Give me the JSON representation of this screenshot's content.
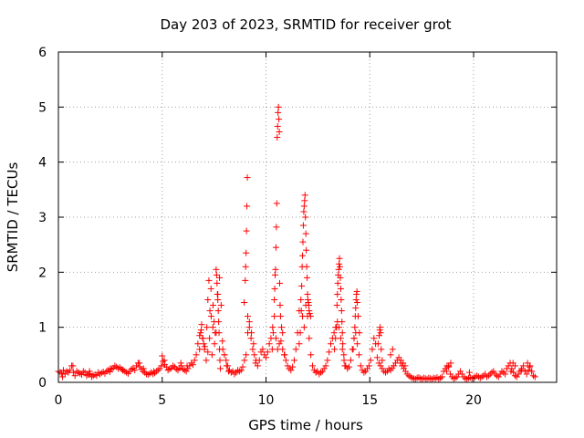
{
  "chart_data": {
    "type": "scatter",
    "title": "Day 203 of 2023, SRMTID for receiver grot",
    "xlabel": "GPS time / hours",
    "ylabel": "SRMTID / TECUs",
    "xlim": [
      0,
      24
    ],
    "ylim": [
      0,
      6
    ],
    "xticks": [
      0,
      5,
      10,
      15,
      20
    ],
    "yticks": [
      0,
      1,
      2,
      3,
      4,
      5,
      6
    ],
    "grid": true,
    "marker": "+",
    "colors": {
      "series": "#ff0000",
      "grid": "#a0a0a0",
      "axis": "#000000"
    },
    "series": [
      {
        "name": "SRMTID",
        "x": [
          0.0,
          0.08,
          0.16,
          0.24,
          0.32,
          0.4,
          0.48,
          0.56,
          0.64,
          0.72,
          0.8,
          0.88,
          0.96,
          1.04,
          1.12,
          1.2,
          1.28,
          1.36,
          1.44,
          1.52,
          1.6,
          1.68,
          1.76,
          1.84,
          1.92,
          2.0,
          2.08,
          2.16,
          2.24,
          2.32,
          2.4,
          2.48,
          2.56,
          2.64,
          2.72,
          2.8,
          2.88,
          2.96,
          3.04,
          3.12,
          3.2,
          3.28,
          3.36,
          3.44,
          3.52,
          3.6,
          3.68,
          3.76,
          3.84,
          3.92,
          4.0,
          4.08,
          4.16,
          4.24,
          4.32,
          4.4,
          4.48,
          4.56,
          4.64,
          4.72,
          4.8,
          4.88,
          4.96,
          5.04,
          5.12,
          5.2,
          5.28,
          5.36,
          5.44,
          5.52,
          5.6,
          5.68,
          5.76,
          5.84,
          5.92,
          6.0,
          6.08,
          6.16,
          6.24,
          6.32,
          6.4,
          6.48,
          6.56,
          6.64,
          6.72,
          6.8,
          6.88,
          6.96,
          7.04,
          7.12,
          7.2,
          7.28,
          7.36,
          7.44,
          7.52,
          7.6,
          7.68,
          7.76,
          7.84,
          7.92,
          8.0,
          8.08,
          8.16,
          8.24,
          8.32,
          8.4,
          8.48,
          8.56,
          8.64,
          8.72,
          8.8,
          8.88,
          8.96,
          9.04,
          9.12,
          9.2,
          9.28,
          9.36,
          9.44,
          9.52,
          9.6,
          9.68,
          9.76,
          9.84,
          9.92,
          10.0,
          10.08,
          10.16,
          10.24,
          10.32,
          10.4,
          10.48,
          10.56,
          10.64,
          10.72,
          10.8,
          10.88,
          10.96,
          11.04,
          11.12,
          11.2,
          11.28,
          11.36,
          11.44,
          11.52,
          11.6,
          11.68,
          11.76,
          11.84,
          11.92,
          12.0,
          12.08,
          12.16,
          12.24,
          12.32,
          12.4,
          12.48,
          12.56,
          12.64,
          12.72,
          12.8,
          12.88,
          12.96,
          13.04,
          13.12,
          13.2,
          13.28,
          13.36,
          13.44,
          13.52,
          13.6,
          13.68,
          13.76,
          13.84,
          13.92,
          14.0,
          14.08,
          14.16,
          14.24,
          14.32,
          14.4,
          14.48,
          14.56,
          14.64,
          14.72,
          14.8,
          14.88,
          14.96,
          15.04,
          15.12,
          15.2,
          15.28,
          15.36,
          15.44,
          15.52,
          15.6,
          15.68,
          15.76,
          15.84,
          15.92,
          16.0,
          16.08,
          16.16,
          16.24,
          16.32,
          16.4,
          16.48,
          16.56,
          16.64,
          16.72,
          16.8,
          16.88,
          16.96,
          17.04,
          17.12,
          17.2,
          17.28,
          17.36,
          17.44,
          17.52,
          17.6,
          17.68,
          17.76,
          17.84,
          17.92,
          18.0,
          18.08,
          18.16,
          18.24,
          18.32,
          18.4,
          18.48,
          18.56,
          18.64,
          18.72,
          18.8,
          18.88,
          18.96,
          19.04,
          19.12,
          19.2,
          19.28,
          19.36,
          19.44,
          19.52,
          19.6,
          19.68,
          19.76,
          19.84,
          19.92,
          20.0,
          20.08,
          20.16,
          20.24,
          20.32,
          20.4,
          20.48,
          20.56,
          20.64,
          20.72,
          20.8,
          20.88,
          20.96,
          21.04,
          21.12,
          21.2,
          21.28,
          21.36,
          21.44,
          21.52,
          21.6,
          21.68,
          21.76,
          21.84,
          21.92,
          22.0,
          22.08,
          22.16,
          22.24,
          22.32,
          22.4,
          22.48,
          22.56,
          22.64,
          22.72,
          22.8,
          22.88,
          22.96,
          0.2,
          0.7,
          1.5,
          2.5,
          3.1,
          3.9,
          4.1,
          4.6,
          5.0,
          5.1,
          5.9,
          6.2,
          6.8,
          6.85,
          6.9,
          6.95,
          7.0,
          7.05,
          7.15,
          7.2,
          7.25,
          7.3,
          7.35,
          7.4,
          7.45,
          7.5,
          7.55,
          7.6,
          7.62,
          7.64,
          7.66,
          7.68,
          7.7,
          7.72,
          7.74,
          7.76,
          7.78,
          7.8,
          7.9,
          8.0,
          8.1,
          8.2,
          8.95,
          9.0,
          9.02,
          9.04,
          9.06,
          9.08,
          9.1,
          9.12,
          9.2,
          9.3,
          9.4,
          9.5,
          10.3,
          10.35,
          10.4,
          10.42,
          10.44,
          10.46,
          10.48,
          10.5,
          10.52,
          10.54,
          10.56,
          10.58,
          10.6,
          10.62,
          10.64,
          10.66,
          10.68,
          10.7,
          10.75,
          10.8,
          10.9,
          11.6,
          11.65,
          11.7,
          11.72,
          11.74,
          11.76,
          11.78,
          11.8,
          11.82,
          11.84,
          11.86,
          11.88,
          11.9,
          11.92,
          11.94,
          11.96,
          11.98,
          12.0,
          12.02,
          12.04,
          12.06,
          12.08,
          12.1,
          12.15,
          13.3,
          13.35,
          13.4,
          13.42,
          13.44,
          13.46,
          13.48,
          13.5,
          13.52,
          13.54,
          13.56,
          13.58,
          13.6,
          13.62,
          13.64,
          13.66,
          13.68,
          13.7,
          13.75,
          13.8,
          14.2,
          14.24,
          14.28,
          14.3,
          14.32,
          14.34,
          14.36,
          14.38,
          14.4,
          14.44,
          14.5,
          15.4,
          15.45,
          15.48,
          15.5,
          15.52,
          15.55,
          15.6,
          16.0,
          16.1,
          16.5,
          16.6,
          16.7,
          18.7,
          18.8,
          18.9,
          19.8,
          21.8,
          21.9,
          22.0,
          22.3,
          22.6,
          22.7,
          22.8
        ],
        "y": [
          0.2,
          0.18,
          0.16,
          0.22,
          0.15,
          0.2,
          0.18,
          0.22,
          0.3,
          0.18,
          0.12,
          0.2,
          0.18,
          0.16,
          0.14,
          0.2,
          0.18,
          0.12,
          0.14,
          0.16,
          0.1,
          0.12,
          0.14,
          0.12,
          0.18,
          0.15,
          0.17,
          0.19,
          0.16,
          0.2,
          0.22,
          0.19,
          0.24,
          0.26,
          0.3,
          0.28,
          0.25,
          0.27,
          0.24,
          0.22,
          0.2,
          0.18,
          0.16,
          0.2,
          0.24,
          0.26,
          0.22,
          0.3,
          0.35,
          0.28,
          0.24,
          0.2,
          0.18,
          0.15,
          0.14,
          0.16,
          0.18,
          0.15,
          0.17,
          0.2,
          0.22,
          0.25,
          0.3,
          0.38,
          0.32,
          0.28,
          0.22,
          0.24,
          0.26,
          0.3,
          0.28,
          0.24,
          0.22,
          0.26,
          0.3,
          0.24,
          0.22,
          0.2,
          0.25,
          0.3,
          0.35,
          0.32,
          0.4,
          0.5,
          0.7,
          0.85,
          0.95,
          0.8,
          0.6,
          0.4,
          0.55,
          0.8,
          1.2,
          1.0,
          0.7,
          0.9,
          1.6,
          1.9,
          1.4,
          0.6,
          0.5,
          0.4,
          0.3,
          0.22,
          0.18,
          0.2,
          0.15,
          0.18,
          0.22,
          0.2,
          0.22,
          0.28,
          0.4,
          0.5,
          0.9,
          1.1,
          0.8,
          0.6,
          0.5,
          0.4,
          0.3,
          0.4,
          0.55,
          0.6,
          0.5,
          0.45,
          0.55,
          0.7,
          0.8,
          1.0,
          1.2,
          0.8,
          0.6,
          0.7,
          0.75,
          0.6,
          0.5,
          0.4,
          0.3,
          0.25,
          0.22,
          0.28,
          0.4,
          0.6,
          0.9,
          1.3,
          1.5,
          1.2,
          1.0,
          1.4,
          1.2,
          0.8,
          0.5,
          0.3,
          0.22,
          0.18,
          0.2,
          0.15,
          0.18,
          0.2,
          0.25,
          0.3,
          0.4,
          0.55,
          0.7,
          0.8,
          0.9,
          1.0,
          1.1,
          1.0,
          0.8,
          0.6,
          0.4,
          0.3,
          0.25,
          0.28,
          0.4,
          0.6,
          0.8,
          0.9,
          0.7,
          0.5,
          0.3,
          0.22,
          0.18,
          0.2,
          0.25,
          0.3,
          0.4,
          0.6,
          0.8,
          0.7,
          0.45,
          0.35,
          0.3,
          0.25,
          0.2,
          0.18,
          0.2,
          0.25,
          0.22,
          0.26,
          0.3,
          0.35,
          0.4,
          0.45,
          0.35,
          0.3,
          0.25,
          0.2,
          0.15,
          0.12,
          0.1,
          0.08,
          0.07,
          0.06,
          0.08,
          0.09,
          0.07,
          0.06,
          0.08,
          0.07,
          0.06,
          0.08,
          0.07,
          0.06,
          0.08,
          0.07,
          0.09,
          0.06,
          0.08,
          0.1,
          0.2,
          0.25,
          0.3,
          0.28,
          0.15,
          0.1,
          0.07,
          0.08,
          0.1,
          0.15,
          0.2,
          0.15,
          0.1,
          0.07,
          0.06,
          0.08,
          0.09,
          0.07,
          0.08,
          0.1,
          0.12,
          0.1,
          0.08,
          0.1,
          0.12,
          0.15,
          0.1,
          0.12,
          0.15,
          0.18,
          0.2,
          0.15,
          0.12,
          0.1,
          0.15,
          0.2,
          0.18,
          0.15,
          0.25,
          0.3,
          0.35,
          0.25,
          0.18,
          0.12,
          0.1,
          0.15,
          0.2,
          0.25,
          0.3,
          0.2,
          0.15,
          0.22,
          0.3,
          0.2,
          0.12,
          0.1,
          0.1,
          0.3,
          0.2,
          0.25,
          0.22,
          0.35,
          0.25,
          0.2,
          0.48,
          0.4,
          0.35,
          0.3,
          0.6,
          0.9,
          1.05,
          0.8,
          0.7,
          0.65,
          1.0,
          1.5,
          1.85,
          1.3,
          1.7,
          0.5,
          1.4,
          1.1,
          0.9,
          2.05,
          1.95,
          1.8,
          1.6,
          1.5,
          1.3,
          1.1,
          0.9,
          0.6,
          0.4,
          0.25,
          0.75,
          0.5,
          0.3,
          0.2,
          1.45,
          1.85,
          2.1,
          2.35,
          2.75,
          3.2,
          3.72,
          1.2,
          1.0,
          0.9,
          0.7,
          0.35,
          0.6,
          0.9,
          1.5,
          1.7,
          1.95,
          2.05,
          2.45,
          2.82,
          3.25,
          4.45,
          4.65,
          4.9,
          5.0,
          4.78,
          4.55,
          1.8,
          1.4,
          1.2,
          1.0,
          0.9,
          0.5,
          0.7,
          0.9,
          1.3,
          1.75,
          2.1,
          2.3,
          2.55,
          2.85,
          3.1,
          3.2,
          3.3,
          3.4,
          3.0,
          2.7,
          2.4,
          2.1,
          1.9,
          1.6,
          1.5,
          1.45,
          1.4,
          1.3,
          1.25,
          1.2,
          0.6,
          0.8,
          1.0,
          1.4,
          1.6,
          1.8,
          1.95,
          2.05,
          2.15,
          2.25,
          2.1,
          1.9,
          1.7,
          1.5,
          1.3,
          1.1,
          0.9,
          0.7,
          0.5,
          0.3,
          0.6,
          0.8,
          1.0,
          1.2,
          1.35,
          1.5,
          1.6,
          1.65,
          1.45,
          1.2,
          0.9,
          0.7,
          0.85,
          0.95,
          1.0,
          0.9,
          0.6,
          0.4,
          0.5,
          0.6,
          0.4,
          0.35,
          0.3,
          0.2,
          0.3,
          0.35,
          0.18,
          0.2,
          0.35,
          0.3,
          0.22,
          0.35,
          0.28,
          0.2
        ]
      }
    ]
  }
}
